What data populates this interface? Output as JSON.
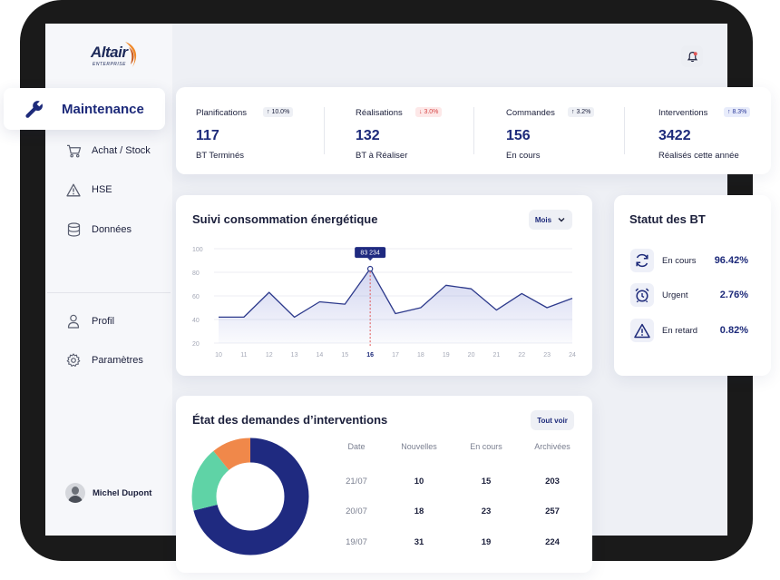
{
  "logo": {
    "name": "Altair",
    "sub": "ENTERPRISE"
  },
  "sidebar": {
    "active": "Maintenance",
    "items": [
      {
        "label": "Achat / Stock",
        "icon": "cart-icon"
      },
      {
        "label": "HSE",
        "icon": "warning-icon"
      },
      {
        "label": "Données",
        "icon": "database-icon"
      },
      {
        "label": "Profil",
        "icon": "user-icon"
      },
      {
        "label": "Paramètres",
        "icon": "gear-icon"
      }
    ],
    "user": "Michel Dupont"
  },
  "stats": [
    {
      "label": "Planifications",
      "badge": "↑ 10.0%",
      "trend": "up",
      "value": "117",
      "sub": "BT Terminés"
    },
    {
      "label": "Réalisations",
      "badge": "↓ 3.0%",
      "trend": "down",
      "value": "132",
      "sub": "BT à Réaliser"
    },
    {
      "label": "Commandes",
      "badge": "↑ 3.2%",
      "trend": "up",
      "value": "156",
      "sub": "En cours"
    },
    {
      "label": "Interventions",
      "badge": "↑ 8.3%",
      "trend": "upblue",
      "value": "3422",
      "sub": "Réalisés cette année"
    }
  ],
  "energy": {
    "title": "Suivi consommation énergétique",
    "period": "Mois",
    "tooltip": "83 234"
  },
  "chart_data": {
    "type": "area",
    "x": [
      "10",
      "11",
      "12",
      "13",
      "14",
      "15",
      "16",
      "17",
      "18",
      "19",
      "20",
      "21",
      "22",
      "23",
      "24"
    ],
    "values": [
      42,
      42,
      63,
      42,
      55,
      53,
      83,
      45,
      50,
      69,
      66,
      48,
      62,
      50,
      58
    ],
    "yticks": [
      "100",
      "80",
      "60",
      "40",
      "20"
    ],
    "ylim": [
      20,
      100
    ],
    "highlight_x": "16",
    "color": "#2d3a8c"
  },
  "statut": {
    "title": "Statut des BT",
    "rows": [
      {
        "label": "En cours",
        "value": "96.42%",
        "icon": "refresh-icon"
      },
      {
        "label": "Urgent",
        "value": "2.76%",
        "icon": "alarm-clock-icon"
      },
      {
        "label": "En retard",
        "value": "0.82%",
        "icon": "warning-icon"
      }
    ]
  },
  "interventions": {
    "title": "État des demandes d’interventions",
    "button": "Tout voir",
    "columns": [
      "Date",
      "Nouvelles",
      "En cours",
      "Archivées"
    ],
    "rows": [
      [
        "21/07",
        "10",
        "15",
        "203"
      ],
      [
        "20/07",
        "18",
        "23",
        "257"
      ],
      [
        "19/07",
        "31",
        "19",
        "224"
      ]
    ],
    "donut": [
      {
        "value": 0.71,
        "color": "#1f2a80"
      },
      {
        "value": 0.18,
        "color": "#5fd3a6"
      },
      {
        "value": 0.11,
        "color": "#f0884a"
      }
    ]
  },
  "colors": {
    "accent": "#1d2a7a",
    "danger": "#e05555",
    "brand_orange": "#f08a2b"
  }
}
